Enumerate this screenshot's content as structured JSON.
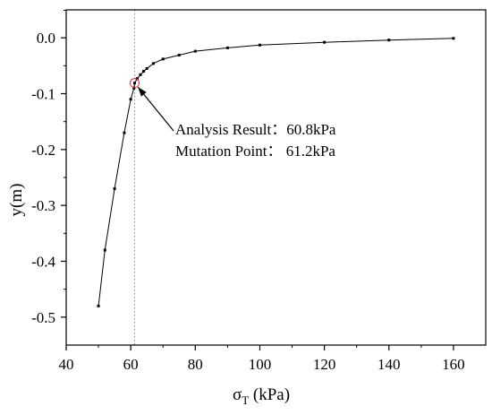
{
  "chart_data": {
    "type": "line",
    "xlabel": "σ",
    "xlabel_sub": "T",
    "xlabel_unit": " (kPa)",
    "ylabel": "y(m)",
    "xlim": [
      40,
      170
    ],
    "ylim": [
      -0.55,
      0.05
    ],
    "xticks": [
      40,
      60,
      80,
      100,
      120,
      140,
      160
    ],
    "yticks": [
      0.0,
      -0.1,
      -0.2,
      -0.3,
      -0.4,
      -0.5
    ],
    "ytick_labels": [
      "0.0",
      "-0.1",
      "-0.2",
      "-0.3",
      "-0.4",
      "-0.5"
    ],
    "grid": false,
    "series": [
      {
        "x": [
          50,
          52,
          55,
          58,
          60,
          61,
          61.2,
          62,
          63,
          64,
          65,
          67,
          70,
          75,
          80,
          90,
          100,
          120,
          140,
          160
        ],
        "y": [
          -0.48,
          -0.38,
          -0.27,
          -0.17,
          -0.11,
          -0.09,
          -0.081,
          -0.073,
          -0.066,
          -0.06,
          -0.055,
          -0.046,
          -0.038,
          -0.031,
          -0.024,
          -0.018,
          -0.013,
          -0.008,
          -0.004,
          -0.001
        ],
        "color": "#000000"
      }
    ],
    "vline": {
      "x": 61.2,
      "style": "dotted",
      "color": "#888888"
    },
    "marker": {
      "x": 61.2,
      "y": -0.081,
      "style": "circle",
      "color": "#e03030"
    },
    "annotations": [
      "Analysis Result：60.8kPa",
      "Mutation Point：  61.2kPa"
    ]
  }
}
